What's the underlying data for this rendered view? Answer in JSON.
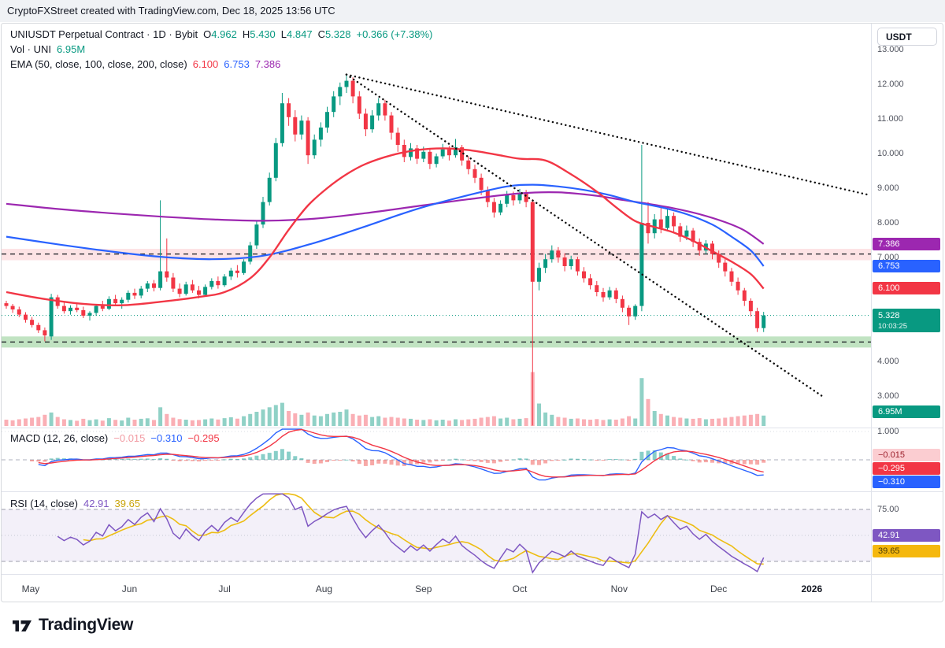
{
  "attribution": "CryptoFXStreet created with TradingView.com, Dec 18, 2025 13:56 UTC",
  "header": {
    "symbol": "UNIUSDT Perpetual Contract · 1D · Bybit",
    "ohlc": {
      "o_label": "O",
      "o": "4.962",
      "h_label": "H",
      "h": "5.430",
      "l_label": "L",
      "l": "4.847",
      "c_label": "C",
      "c": "5.328",
      "change": "+0.366 (+7.38%)"
    },
    "volume": {
      "label": "Vol · UNI",
      "value": "6.95M"
    },
    "ema": {
      "label": "EMA (50, close, 100, close, 200, close)",
      "v50": "6.100",
      "v100": "6.753",
      "v200": "7.386"
    }
  },
  "macd_legend": {
    "label": "MACD (12, 26, close)",
    "hist": "−0.015",
    "macd": "−0.310",
    "signal": "−0.295"
  },
  "rsi_legend": {
    "label": "RSI (14, close)",
    "value": "42.91",
    "ma": "39.65"
  },
  "axis": {
    "currency": "USDT",
    "price_ticks": [
      "13.000",
      "12.000",
      "11.000",
      "10.000",
      "9.000",
      "8.000",
      "7.000",
      "4.000",
      "3.000"
    ],
    "tags": {
      "ema200": "7.386",
      "ema100": "6.753",
      "ema50": "6.100",
      "last": "5.328",
      "countdown": "10:03:25",
      "volume": "6.95M"
    },
    "macd_tick": "1.000",
    "macd_tags": {
      "hist": "−0.015",
      "signal": "−0.295",
      "macd": "−0.310"
    },
    "rsi_tick": "75.00",
    "rsi_tags": {
      "rsi": "42.91",
      "ma": "39.65"
    }
  },
  "time_axis": {
    "months": [
      {
        "label": "May",
        "i": 3.8
      },
      {
        "label": "Jun",
        "i": 19.2
      },
      {
        "label": "Jul",
        "i": 34
      },
      {
        "label": "Aug",
        "i": 49.5
      },
      {
        "label": "Sep",
        "i": 65
      },
      {
        "label": "Oct",
        "i": 80
      },
      {
        "label": "Nov",
        "i": 95.5
      },
      {
        "label": "Dec",
        "i": 111
      },
      {
        "label": "2026",
        "i": 125.5,
        "bold": true
      }
    ]
  },
  "logo": "TradingView",
  "colors": {
    "up": "#089981",
    "down": "#f23645",
    "vol_up": "rgba(8,153,129,0.45)",
    "vol_down": "rgba(242,54,69,0.40)",
    "ema50": "#f23645",
    "ema100": "#2962ff",
    "ema200": "#9c27b0",
    "trendline": "#0b0b0b",
    "macd_line": "#2962ff",
    "signal_line": "#f23645",
    "hist_pos": "rgba(38,166,154,0.55)",
    "hist_neg": "rgba(239,83,80,0.50)",
    "rsi_line": "#7e57c2",
    "rsi_ma": "#edbd12",
    "rsi_fill": "rgba(126,87,194,0.09)",
    "last_line": "#089981"
  },
  "chart_data": {
    "type": "candlestick",
    "symbol": "UNIUSDT",
    "exchange": "Bybit",
    "interval": "1D",
    "price_axis_range": [
      2.0,
      13.5
    ],
    "price_unit": "USDT",
    "last_price": 5.328,
    "candles": [
      [
        5.68,
        5.75,
        5.52,
        5.6,
        4.2
      ],
      [
        5.6,
        5.66,
        5.4,
        5.5,
        3.8
      ],
      [
        5.5,
        5.58,
        5.28,
        5.35,
        4.5
      ],
      [
        5.35,
        5.42,
        5.12,
        5.2,
        5.0
      ],
      [
        5.2,
        5.28,
        4.98,
        5.05,
        5.5
      ],
      [
        5.05,
        5.12,
        4.82,
        4.9,
        6.0
      ],
      [
        4.9,
        4.98,
        4.58,
        4.75,
        7.5
      ],
      [
        4.72,
        5.95,
        4.62,
        5.85,
        9.0
      ],
      [
        5.85,
        5.92,
        5.52,
        5.6,
        6.0
      ],
      [
        5.6,
        5.72,
        5.38,
        5.45,
        4.5
      ],
      [
        5.45,
        5.62,
        5.35,
        5.55,
        4.0
      ],
      [
        5.55,
        5.7,
        5.42,
        5.48,
        3.5
      ],
      [
        5.48,
        5.58,
        5.25,
        5.32,
        4.8
      ],
      [
        5.32,
        5.45,
        5.18,
        5.4,
        3.9
      ],
      [
        5.4,
        5.66,
        5.32,
        5.6,
        4.4
      ],
      [
        5.6,
        5.75,
        5.45,
        5.52,
        3.6
      ],
      [
        5.52,
        5.88,
        5.48,
        5.8,
        5.2
      ],
      [
        5.8,
        5.92,
        5.6,
        5.68,
        4.1
      ],
      [
        5.68,
        5.85,
        5.52,
        5.78,
        3.7
      ],
      [
        5.78,
        6.05,
        5.7,
        5.98,
        5.5
      ],
      [
        5.98,
        6.1,
        5.8,
        5.9,
        4.2
      ],
      [
        5.9,
        6.18,
        5.82,
        6.1,
        4.8
      ],
      [
        6.1,
        6.32,
        6.0,
        6.25,
        5.1
      ],
      [
        6.25,
        6.35,
        6.02,
        6.12,
        4.0
      ],
      [
        6.12,
        8.65,
        6.05,
        6.6,
        12.5
      ],
      [
        6.6,
        7.55,
        6.3,
        6.42,
        8.0
      ],
      [
        6.42,
        6.55,
        6.0,
        6.1,
        5.5
      ],
      [
        6.1,
        6.25,
        5.85,
        5.95,
        4.6
      ],
      [
        5.95,
        6.3,
        5.9,
        6.22,
        4.2
      ],
      [
        6.22,
        6.35,
        5.98,
        6.05,
        3.8
      ],
      [
        6.05,
        6.18,
        5.82,
        5.92,
        4.0
      ],
      [
        5.92,
        6.22,
        5.88,
        6.15,
        4.4
      ],
      [
        6.15,
        6.4,
        6.08,
        6.32,
        5.0
      ],
      [
        6.32,
        6.45,
        6.1,
        6.2,
        4.3
      ],
      [
        6.2,
        6.52,
        6.15,
        6.45,
        5.2
      ],
      [
        6.45,
        6.7,
        6.35,
        6.62,
        5.8
      ],
      [
        6.62,
        6.78,
        6.42,
        6.55,
        4.9
      ],
      [
        6.55,
        6.95,
        6.5,
        6.88,
        6.5
      ],
      [
        6.88,
        7.45,
        6.8,
        7.35,
        8.0
      ],
      [
        7.35,
        8.05,
        7.25,
        7.95,
        9.5
      ],
      [
        7.95,
        8.75,
        7.85,
        8.6,
        11.0
      ],
      [
        8.6,
        9.45,
        8.5,
        9.3,
        12.5
      ],
      [
        9.3,
        10.45,
        9.2,
        10.3,
        14.0
      ],
      [
        10.3,
        11.75,
        10.2,
        11.45,
        15.5
      ],
      [
        11.45,
        11.6,
        10.8,
        11.05,
        10.0
      ],
      [
        11.05,
        11.25,
        10.35,
        10.55,
        8.5
      ],
      [
        10.55,
        11.1,
        10.4,
        10.95,
        7.5
      ],
      [
        10.95,
        11.05,
        9.7,
        9.95,
        9.0
      ],
      [
        9.95,
        10.55,
        9.85,
        10.4,
        7.0
      ],
      [
        10.4,
        10.9,
        10.2,
        10.75,
        6.5
      ],
      [
        10.75,
        11.35,
        10.6,
        11.2,
        8.0
      ],
      [
        11.2,
        11.8,
        11.05,
        11.65,
        9.0
      ],
      [
        11.65,
        12.05,
        11.4,
        11.92,
        9.5
      ],
      [
        11.92,
        12.28,
        11.75,
        12.1,
        11.0
      ],
      [
        12.1,
        12.2,
        11.45,
        11.65,
        8.0
      ],
      [
        11.65,
        11.8,
        11.0,
        11.15,
        7.0
      ],
      [
        11.15,
        11.3,
        10.5,
        10.7,
        7.5
      ],
      [
        10.7,
        11.25,
        10.6,
        11.1,
        6.0
      ],
      [
        11.1,
        11.6,
        10.95,
        11.45,
        6.5
      ],
      [
        11.45,
        11.55,
        10.95,
        11.1,
        5.5
      ],
      [
        11.1,
        11.2,
        10.4,
        10.6,
        6.0
      ],
      [
        10.6,
        10.75,
        10.05,
        10.25,
        5.5
      ],
      [
        10.25,
        10.4,
        9.75,
        9.9,
        5.0
      ],
      [
        9.9,
        10.3,
        9.8,
        10.15,
        4.8
      ],
      [
        10.15,
        10.25,
        9.7,
        9.85,
        4.2
      ],
      [
        9.85,
        10.2,
        9.75,
        10.05,
        4.0
      ],
      [
        10.05,
        10.15,
        9.55,
        9.7,
        4.5
      ],
      [
        9.7,
        10.0,
        9.6,
        9.92,
        3.8
      ],
      [
        9.92,
        10.28,
        9.85,
        10.12,
        4.2
      ],
      [
        10.12,
        10.22,
        9.8,
        9.95,
        3.6
      ],
      [
        9.95,
        10.42,
        9.88,
        10.18,
        4.5
      ],
      [
        10.18,
        10.25,
        9.65,
        9.8,
        4.0
      ],
      [
        9.8,
        9.92,
        9.4,
        9.55,
        4.4
      ],
      [
        9.55,
        9.68,
        9.15,
        9.3,
        4.8
      ],
      [
        9.3,
        9.42,
        8.8,
        8.95,
        5.5
      ],
      [
        8.95,
        9.05,
        8.45,
        8.6,
        6.0
      ],
      [
        8.6,
        8.72,
        8.15,
        8.3,
        6.5
      ],
      [
        8.3,
        8.65,
        8.22,
        8.55,
        5.0
      ],
      [
        8.55,
        8.92,
        8.45,
        8.8,
        5.5
      ],
      [
        8.8,
        8.9,
        8.5,
        8.65,
        4.5
      ],
      [
        8.65,
        8.98,
        8.55,
        8.85,
        4.8
      ],
      [
        8.85,
        8.95,
        8.45,
        8.6,
        5.2
      ],
      [
        8.6,
        8.68,
        2.15,
        6.3,
        36.0
      ],
      [
        6.3,
        6.85,
        6.05,
        6.7,
        15.0
      ],
      [
        6.7,
        7.1,
        6.55,
        6.95,
        9.0
      ],
      [
        6.95,
        7.35,
        6.85,
        7.2,
        7.5
      ],
      [
        7.2,
        7.3,
        6.85,
        7.0,
        6.0
      ],
      [
        7.0,
        7.12,
        6.6,
        6.75,
        5.5
      ],
      [
        6.75,
        7.05,
        6.65,
        6.95,
        4.8
      ],
      [
        6.95,
        7.02,
        6.48,
        6.6,
        5.0
      ],
      [
        6.6,
        6.72,
        6.28,
        6.4,
        4.5
      ],
      [
        6.4,
        6.52,
        6.08,
        6.2,
        4.2
      ],
      [
        6.2,
        6.32,
        5.88,
        6.0,
        4.6
      ],
      [
        6.0,
        6.12,
        5.72,
        5.85,
        4.0
      ],
      [
        5.85,
        6.15,
        5.78,
        6.05,
        4.4
      ],
      [
        6.05,
        6.12,
        5.68,
        5.8,
        4.2
      ],
      [
        5.8,
        5.9,
        5.42,
        5.55,
        5.0
      ],
      [
        5.55,
        5.62,
        5.05,
        5.3,
        6.5
      ],
      [
        5.3,
        5.65,
        5.2,
        5.6,
        5.0
      ],
      [
        5.6,
        10.25,
        5.45,
        8.0,
        32.0
      ],
      [
        8.0,
        8.6,
        7.4,
        7.7,
        18.0
      ],
      [
        7.7,
        8.25,
        7.55,
        8.1,
        10.0
      ],
      [
        8.1,
        8.45,
        7.7,
        7.85,
        8.0
      ],
      [
        7.85,
        8.4,
        7.75,
        8.2,
        7.0
      ],
      [
        8.2,
        8.3,
        7.75,
        7.9,
        6.0
      ],
      [
        7.9,
        8.0,
        7.45,
        7.6,
        5.5
      ],
      [
        7.6,
        7.92,
        7.5,
        7.78,
        5.0
      ],
      [
        7.78,
        7.85,
        7.3,
        7.45,
        4.8
      ],
      [
        7.45,
        7.55,
        7.05,
        7.2,
        5.2
      ],
      [
        7.2,
        7.5,
        7.1,
        7.4,
        4.5
      ],
      [
        7.4,
        7.48,
        6.95,
        7.1,
        4.8
      ],
      [
        7.1,
        7.2,
        6.7,
        6.85,
        5.0
      ],
      [
        6.85,
        6.95,
        6.45,
        6.6,
        5.5
      ],
      [
        6.6,
        6.7,
        6.18,
        6.3,
        6.0
      ],
      [
        6.3,
        6.42,
        5.92,
        6.05,
        6.5
      ],
      [
        6.05,
        6.12,
        5.6,
        5.75,
        7.0
      ],
      [
        5.75,
        5.82,
        5.3,
        5.45,
        7.5
      ],
      [
        5.45,
        5.55,
        4.85,
        4.96,
        8.0
      ],
      [
        4.962,
        5.43,
        4.847,
        5.328,
        6.95
      ]
    ],
    "ema50_points": [
      [
        0,
        6.0
      ],
      [
        6,
        5.8
      ],
      [
        12,
        5.66
      ],
      [
        18,
        5.62
      ],
      [
        24,
        5.72
      ],
      [
        30,
        5.86
      ],
      [
        34,
        6.0
      ],
      [
        38,
        6.4
      ],
      [
        41,
        7.0
      ],
      [
        44,
        7.8
      ],
      [
        47,
        8.5
      ],
      [
        50,
        9.0
      ],
      [
        53,
        9.4
      ],
      [
        56,
        9.7
      ],
      [
        60,
        9.95
      ],
      [
        64,
        10.1
      ],
      [
        68,
        10.15
      ],
      [
        72,
        10.1
      ],
      [
        76,
        9.98
      ],
      [
        80,
        9.85
      ],
      [
        84,
        9.8
      ],
      [
        88,
        9.4
      ],
      [
        92,
        8.9
      ],
      [
        95,
        8.45
      ],
      [
        98,
        8.05
      ],
      [
        101,
        7.88
      ],
      [
        104,
        7.72
      ],
      [
        107,
        7.48
      ],
      [
        110,
        7.18
      ],
      [
        113,
        6.88
      ],
      [
        116,
        6.52
      ],
      [
        118,
        6.1
      ]
    ],
    "ema100_points": [
      [
        0,
        7.6
      ],
      [
        8,
        7.38
      ],
      [
        16,
        7.18
      ],
      [
        24,
        7.02
      ],
      [
        32,
        6.95
      ],
      [
        40,
        7.05
      ],
      [
        48,
        7.42
      ],
      [
        56,
        7.9
      ],
      [
        64,
        8.4
      ],
      [
        72,
        8.8
      ],
      [
        78,
        9.05
      ],
      [
        82,
        9.1
      ],
      [
        86,
        9.05
      ],
      [
        90,
        8.95
      ],
      [
        94,
        8.8
      ],
      [
        98,
        8.6
      ],
      [
        102,
        8.45
      ],
      [
        106,
        8.25
      ],
      [
        110,
        7.95
      ],
      [
        113,
        7.6
      ],
      [
        116,
        7.2
      ],
      [
        118,
        6.75
      ]
    ],
    "ema200_points": [
      [
        0,
        8.55
      ],
      [
        8,
        8.4
      ],
      [
        16,
        8.28
      ],
      [
        24,
        8.18
      ],
      [
        32,
        8.1
      ],
      [
        40,
        8.06
      ],
      [
        48,
        8.12
      ],
      [
        56,
        8.28
      ],
      [
        64,
        8.48
      ],
      [
        72,
        8.68
      ],
      [
        80,
        8.85
      ],
      [
        86,
        8.88
      ],
      [
        92,
        8.78
      ],
      [
        96,
        8.66
      ],
      [
        100,
        8.55
      ],
      [
        104,
        8.42
      ],
      [
        108,
        8.25
      ],
      [
        112,
        8.02
      ],
      [
        115,
        7.78
      ],
      [
        118,
        7.39
      ]
    ],
    "trendlines": [
      {
        "from": [
          53,
          12.28
        ],
        "to": [
          134.5,
          8.8
        ]
      },
      {
        "from": [
          53,
          12.28
        ],
        "to": [
          127.5,
          2.95
        ]
      }
    ],
    "zones": [
      {
        "type": "resistance",
        "top": 7.25,
        "bottom": 6.92,
        "line": 7.1,
        "fill": "rgba(242,54,69,0.14)"
      },
      {
        "type": "support",
        "top": 4.72,
        "bottom": 4.4,
        "line": 4.56,
        "fill": "rgba(76,175,80,0.35)"
      }
    ],
    "indicators": {
      "macd": {
        "fast": 12,
        "slow": 26,
        "source": "close",
        "hist": -0.015,
        "macd": -0.31,
        "signal": -0.295,
        "scale_tick": 1.0
      },
      "rsi": {
        "period": 14,
        "value": 42.91,
        "ma": 39.65,
        "upper_band": 75,
        "lower_band": 25,
        "middle_band": 50
      }
    }
  }
}
